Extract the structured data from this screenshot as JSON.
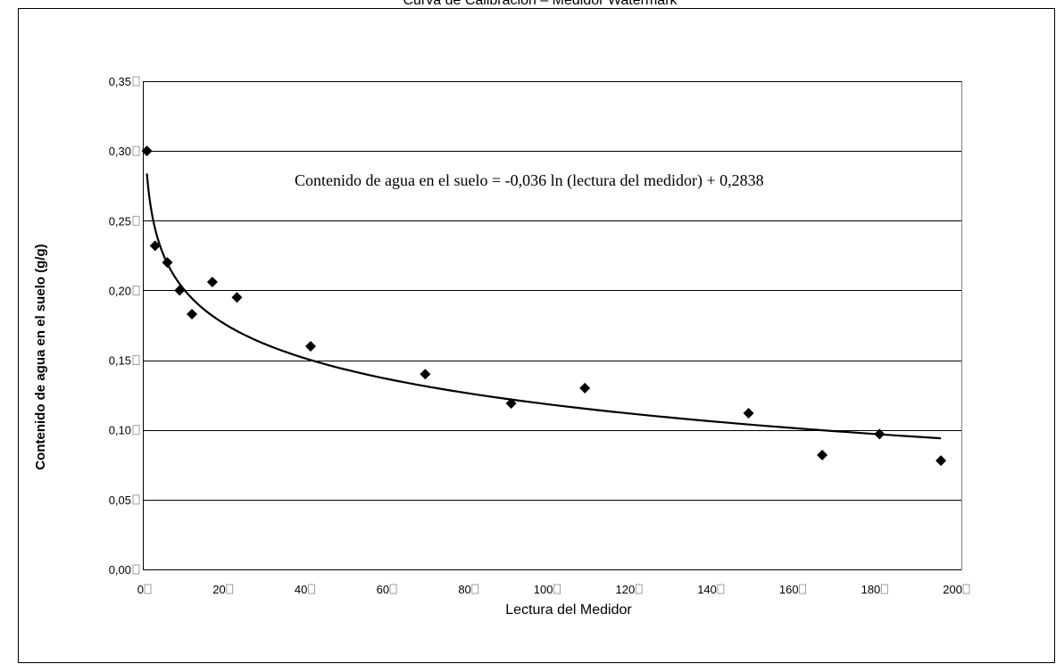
{
  "chart_data": {
    "type": "scatter",
    "title": "Curva de Calibración – Medidor Watermark",
    "xlabel": "Lectura del Medidor",
    "ylabel": "Contenido de agua en el suelo (g/g)",
    "xlim": [
      0,
      200
    ],
    "ylim": [
      0,
      0.35
    ],
    "x_ticks": [
      0,
      20,
      40,
      60,
      80,
      100,
      120,
      140,
      160,
      180,
      200
    ],
    "y_ticks": [
      0,
      0.05,
      0.1,
      0.15,
      0.2,
      0.25,
      0.3,
      0.35
    ],
    "x_tick_labels": [
      "0",
      "20",
      "40",
      "60",
      "80",
      "100",
      "120",
      "140",
      "160",
      "180",
      "200"
    ],
    "y_tick_labels": [
      "0,00",
      "0,05",
      "0,10",
      "0,15",
      "0,20",
      "0,25",
      "0,30",
      "0,35"
    ],
    "grid": "horizontal",
    "series": [
      {
        "marker": "diamond",
        "x": [
          1,
          3,
          6,
          9,
          12,
          17,
          23,
          41,
          69,
          90,
          108,
          148,
          166,
          180,
          195
        ],
        "y": [
          0.3,
          0.232,
          0.22,
          0.2,
          0.183,
          0.206,
          0.195,
          0.16,
          0.14,
          0.119,
          0.13,
          0.112,
          0.082,
          0.097,
          0.078
        ]
      }
    ],
    "trendline": {
      "type": "logarithmic",
      "a": -0.036,
      "b": 0.2838,
      "x_range": [
        1,
        195
      ],
      "equation": "Contenido de agua en el suelo = -0,036 ln (lectura del medidor) + 0,2838"
    },
    "colors": {
      "marker": "#000000",
      "trend": "#000000",
      "grid": "#000000",
      "plot_border": "#808080"
    }
  }
}
